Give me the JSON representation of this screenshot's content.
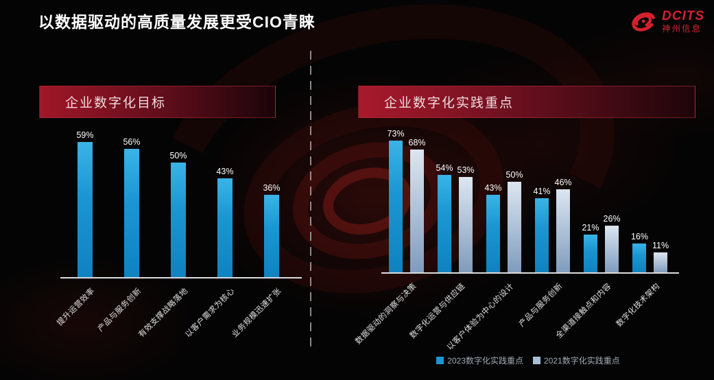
{
  "slide": {
    "title": "以数据驱动的高质量发展更受CIO青睐"
  },
  "logo": {
    "brand": "DCITS",
    "subtitle": "神州信息",
    "color": "#d5212e",
    "icon": "swirl-galaxy"
  },
  "colors": {
    "background": "#040404",
    "title_text": "#ffffff",
    "banner_red": "#a01728",
    "banner_text": "#f2dade",
    "bar_2023_blue": "#1b96d3",
    "bar_2021_gray_blue": "#a9bdd6",
    "axis_line": "#dcdcdc",
    "legend_text": "#9fabb8"
  },
  "chart_data": [
    {
      "type": "bar",
      "title": "企业数字化目标",
      "categories": [
        "提升运营效率",
        "产品与服务创新",
        "有效支撑战略落地",
        "以客户需求为核心",
        "业务规模迅速扩张"
      ],
      "values": [
        59,
        56,
        50,
        43,
        36
      ],
      "unit": "%",
      "grid": false,
      "data_labels": true,
      "bar_color": "#1b96d3",
      "legend_position": "none",
      "x_label_rotation_deg": -45
    },
    {
      "type": "bar",
      "title": "企业数字化实践重点",
      "categories": [
        "数据驱动的洞察与决策",
        "数字化运营与供应链",
        "以客户体验为中心的设计",
        "产品与服务创新",
        "全渠道接触点和内容",
        "数字化技术架构"
      ],
      "series": [
        {
          "name": "2023数字化实践重点",
          "values": [
            73,
            54,
            43,
            41,
            21,
            16
          ],
          "color": "#1b96d3"
        },
        {
          "name": "2021数字化实践重点",
          "values": [
            68,
            53,
            50,
            46,
            26,
            11
          ],
          "color": "#a9bdd6"
        }
      ],
      "unit": "%",
      "grid": false,
      "data_labels": true,
      "legend_position": "bottom",
      "x_label_rotation_deg": -45
    }
  ]
}
